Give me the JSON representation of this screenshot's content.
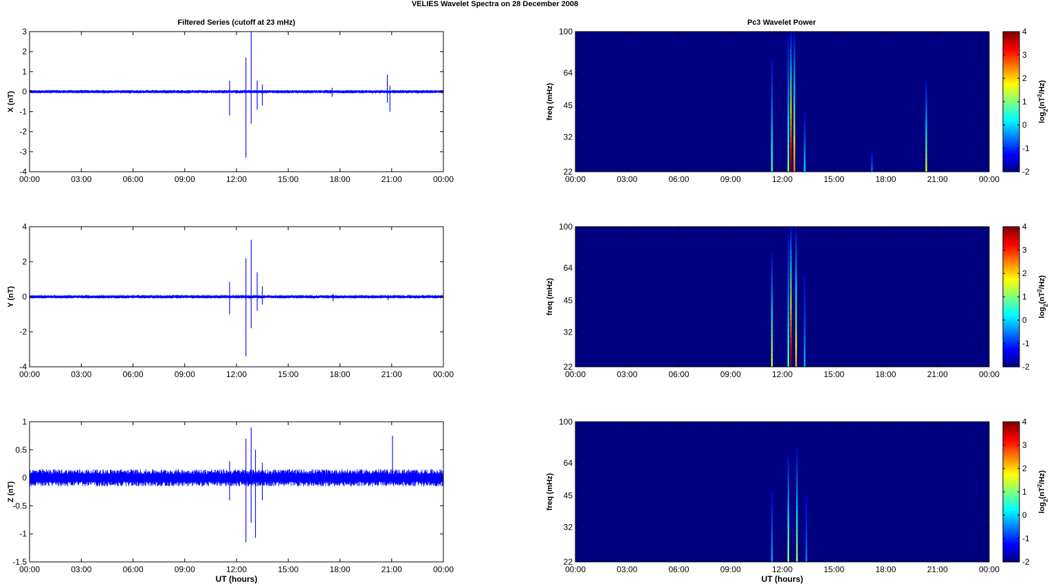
{
  "figure": {
    "title": "VELIES Wavelet Spectra on 28 December  2008",
    "left_title": "Filtered Series (cutoff at 23 mHz)",
    "right_title": "Pc3 Wavelet Power",
    "xlabel": "UT (hours)"
  },
  "colors": {
    "trace": "#0000ff",
    "background": "#00008f",
    "axis": "#000000"
  },
  "chart_data": [
    {
      "type": "line",
      "name": "X",
      "ylabel": "X (nT)",
      "xlabel": "",
      "xlim": [
        0,
        24
      ],
      "x_ticks": [
        "00:00",
        "03:00",
        "06:00",
        "09:00",
        "12:00",
        "15:00",
        "18:00",
        "21:00",
        "00:00"
      ],
      "ylim": [
        -4,
        3
      ],
      "y_ticks": [
        "-4",
        "-3",
        "-2",
        "-1",
        "0",
        "1",
        "2",
        "3"
      ],
      "baseline_noise": 0.06,
      "spikes": [
        {
          "t": 11.6,
          "max": 0.55,
          "min": -1.2
        },
        {
          "t": 12.55,
          "max": 1.7,
          "min": -3.3
        },
        {
          "t": 12.85,
          "max": 3.0,
          "min": -1.6
        },
        {
          "t": 13.2,
          "max": 0.55,
          "min": -0.9
        },
        {
          "t": 13.5,
          "max": 0.35,
          "min": -0.7
        },
        {
          "t": 17.55,
          "max": 0.2,
          "min": -0.25
        },
        {
          "t": 20.75,
          "max": 0.85,
          "min": -0.55
        },
        {
          "t": 20.9,
          "max": 0.3,
          "min": -1.0
        }
      ]
    },
    {
      "type": "line",
      "name": "Y",
      "ylabel": "Y (nT)",
      "xlabel": "",
      "xlim": [
        0,
        24
      ],
      "x_ticks": [
        "00:00",
        "03:00",
        "06:00",
        "09:00",
        "12:00",
        "15:00",
        "18:00",
        "21:00",
        "00:00"
      ],
      "ylim": [
        -4,
        4
      ],
      "y_ticks": [
        "-4",
        "-2",
        "0",
        "2",
        "4"
      ],
      "baseline_noise": 0.07,
      "spikes": [
        {
          "t": 11.6,
          "max": 0.85,
          "min": -1.0
        },
        {
          "t": 12.55,
          "max": 2.2,
          "min": -3.4
        },
        {
          "t": 12.85,
          "max": 3.25,
          "min": -1.8
        },
        {
          "t": 13.2,
          "max": 1.4,
          "min": -0.8
        },
        {
          "t": 13.5,
          "max": 0.6,
          "min": -0.45
        },
        {
          "t": 17.6,
          "max": 0.15,
          "min": -0.25
        },
        {
          "t": 20.8,
          "max": 0.1,
          "min": -0.2
        }
      ]
    },
    {
      "type": "line",
      "name": "Z",
      "ylabel": "Z (nT)",
      "xlabel": "UT (hours)",
      "xlim": [
        0,
        24
      ],
      "x_ticks": [
        "00:00",
        "03:00",
        "06:00",
        "09:00",
        "12:00",
        "15:00",
        "18:00",
        "21:00",
        "00:00"
      ],
      "ylim": [
        -1.5,
        1
      ],
      "y_ticks": [
        "-1.5",
        "-1",
        "-0.5",
        "0",
        "0.5",
        "1"
      ],
      "baseline_noise": 0.11,
      "spikes": [
        {
          "t": 11.6,
          "max": 0.3,
          "min": -0.4
        },
        {
          "t": 12.55,
          "max": 0.7,
          "min": -1.15
        },
        {
          "t": 12.85,
          "max": 0.9,
          "min": -0.8
        },
        {
          "t": 13.1,
          "max": 0.5,
          "min": -1.07
        },
        {
          "t": 13.5,
          "max": 0.27,
          "min": -0.4
        },
        {
          "t": 21.05,
          "max": 0.75,
          "min": -0.1
        }
      ]
    },
    {
      "type": "heatmap",
      "name": "X wavelet power",
      "ylabel": "freq (mHz)",
      "xlabel": "",
      "xlim": [
        0,
        24
      ],
      "x_ticks": [
        "00:00",
        "03:00",
        "06:00",
        "09:00",
        "12:00",
        "15:00",
        "18:00",
        "21:00",
        "00:00"
      ],
      "y_scale": "log",
      "ylim": [
        22,
        100
      ],
      "y_ticks": [
        "22",
        "32",
        "45",
        "64",
        "100"
      ],
      "colorbar": {
        "label": "log2(nT2/Hz)",
        "range": [
          -2,
          4
        ],
        "ticks": [
          "-2",
          "-1",
          "0",
          "1",
          "2",
          "3",
          "4"
        ]
      },
      "background_value": -2,
      "streaks": [
        {
          "t": 11.4,
          "level": 0.45,
          "top_freq": 75
        },
        {
          "t": 12.35,
          "level": 0.5,
          "top_freq": 95
        },
        {
          "t": 12.5,
          "level": 1.0,
          "top_freq": 100
        },
        {
          "t": 12.7,
          "level": 0.75,
          "top_freq": 100
        },
        {
          "t": 13.3,
          "level": 0.35,
          "top_freq": 42
        },
        {
          "t": 17.2,
          "level": 0.25,
          "top_freq": 28
        },
        {
          "t": 20.35,
          "level": 0.6,
          "top_freq": 58
        }
      ]
    },
    {
      "type": "heatmap",
      "name": "Y wavelet power",
      "ylabel": "freq (mHz)",
      "xlabel": "",
      "xlim": [
        0,
        24
      ],
      "x_ticks": [
        "00:00",
        "03:00",
        "06:00",
        "09:00",
        "12:00",
        "15:00",
        "18:00",
        "21:00",
        "00:00"
      ],
      "y_scale": "log",
      "ylim": [
        22,
        100
      ],
      "y_ticks": [
        "22",
        "32",
        "45",
        "64",
        "100"
      ],
      "colorbar": {
        "label": "log2(nT2/Hz)",
        "range": [
          -2,
          4
        ],
        "ticks": [
          "-2",
          "-1",
          "0",
          "1",
          "2",
          "3",
          "4"
        ]
      },
      "background_value": -2,
      "streaks": [
        {
          "t": 11.4,
          "level": 0.6,
          "top_freq": 75
        },
        {
          "t": 12.35,
          "level": 0.45,
          "top_freq": 92
        },
        {
          "t": 12.5,
          "level": 1.0,
          "top_freq": 100
        },
        {
          "t": 12.8,
          "level": 0.7,
          "top_freq": 100
        },
        {
          "t": 13.3,
          "level": 0.3,
          "top_freq": 60
        }
      ]
    },
    {
      "type": "heatmap",
      "name": "Z wavelet power",
      "ylabel": "freq (mHz)",
      "xlabel": "UT (hours)",
      "xlim": [
        0,
        24
      ],
      "x_ticks": [
        "00:00",
        "03:00",
        "06:00",
        "09:00",
        "12:00",
        "15:00",
        "18:00",
        "21:00",
        "00:00"
      ],
      "y_scale": "log",
      "ylim": [
        22,
        100
      ],
      "y_ticks": [
        "22",
        "32",
        "45",
        "64",
        "100"
      ],
      "colorbar": {
        "label": "log2(nT2/Hz)",
        "range": [
          -2,
          4
        ],
        "ticks": [
          "-2",
          "-1",
          "0",
          "1",
          "2",
          "3",
          "4"
        ]
      },
      "background_value": -2,
      "streaks": [
        {
          "t": 11.4,
          "level": 0.3,
          "top_freq": 48
        },
        {
          "t": 12.35,
          "level": 0.55,
          "top_freq": 70
        },
        {
          "t": 12.85,
          "level": 0.55,
          "top_freq": 75
        },
        {
          "t": 13.4,
          "level": 0.25,
          "top_freq": 45
        }
      ]
    }
  ]
}
